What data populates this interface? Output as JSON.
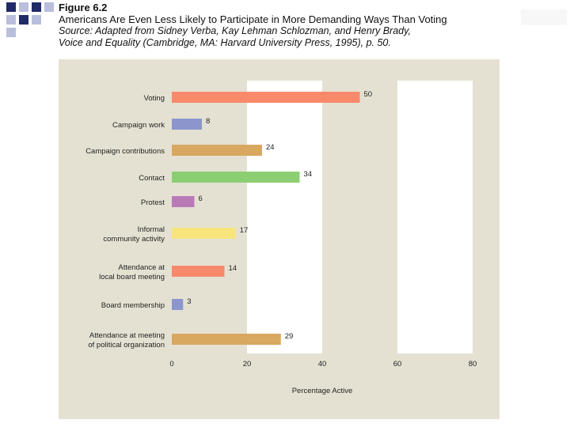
{
  "header": {
    "figure_label": "Figure 6.2",
    "title": "Americans Are Even Less Likely to Participate in More Demanding Ways Than Voting",
    "source_line1": "Source: Adapted from Sidney Verba, Kay Lehman Schlozman, and Henry Brady,",
    "source_line2": "Voice and Equality (Cambridge, MA: Harvard University Press, 1995), p. 50."
  },
  "colors": {
    "panel_bg": "#e5e1d2",
    "plot_bg": "#ffffff",
    "square_dark": "#1f2a66",
    "square_light": "#b9bedc"
  },
  "chart_data": {
    "type": "bar",
    "orientation": "horizontal",
    "title": "Americans Are Even Less Likely to Participate in More Demanding Ways Than Voting",
    "xlabel": "Percentage Active",
    "ylabel": "",
    "xlim": [
      0,
      80
    ],
    "xticks": [
      0,
      20,
      40,
      60,
      80
    ],
    "categories": [
      [
        "Voting"
      ],
      [
        "Campaign work"
      ],
      [
        "Campaign contributions"
      ],
      [
        "Contact"
      ],
      [
        "Protest"
      ],
      [
        "Informal",
        "community activity"
      ],
      [
        "Attendance at",
        "local board meeting"
      ],
      [
        "Board membership"
      ],
      [
        "Attendance at meeting",
        "of political organization"
      ]
    ],
    "values": [
      50,
      8,
      24,
      34,
      6,
      17,
      14,
      3,
      29
    ],
    "bar_colors": [
      "#f8896b",
      "#8c96cc",
      "#d8a760",
      "#8ccf73",
      "#b97ab8",
      "#f7e57c",
      "#f8896b",
      "#8c96cc",
      "#d8a760"
    ]
  }
}
